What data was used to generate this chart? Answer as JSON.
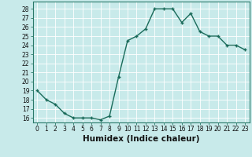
{
  "x": [
    0,
    1,
    2,
    3,
    4,
    5,
    6,
    7,
    8,
    9,
    10,
    11,
    12,
    13,
    14,
    15,
    16,
    17,
    18,
    19,
    20,
    21,
    22,
    23
  ],
  "y": [
    19.0,
    18.0,
    17.5,
    16.5,
    16.0,
    16.0,
    16.0,
    15.8,
    16.2,
    20.5,
    24.5,
    25.0,
    25.8,
    28.0,
    28.0,
    28.0,
    26.5,
    27.5,
    25.5,
    25.0,
    25.0,
    24.0,
    24.0,
    23.5
  ],
  "xlabel": "Humidex (Indice chaleur)",
  "line_color": "#1a6b5a",
  "marker_color": "#1a6b5a",
  "background_color": "#c8eaea",
  "grid_color": "#a0d0d0",
  "ylim": [
    15.5,
    28.8
  ],
  "xlim": [
    -0.5,
    23.5
  ],
  "yticks": [
    16,
    17,
    18,
    19,
    20,
    21,
    22,
    23,
    24,
    25,
    26,
    27,
    28
  ],
  "xticks": [
    0,
    1,
    2,
    3,
    4,
    5,
    6,
    7,
    8,
    9,
    10,
    11,
    12,
    13,
    14,
    15,
    16,
    17,
    18,
    19,
    20,
    21,
    22,
    23
  ],
  "xtick_labels": [
    "0",
    "1",
    "2",
    "3",
    "4",
    "5",
    "6",
    "7",
    "8",
    "9",
    "10",
    "11",
    "12",
    "13",
    "14",
    "15",
    "16",
    "17",
    "18",
    "19",
    "20",
    "21",
    "22",
    "23"
  ],
  "tick_fontsize": 5.5,
  "xlabel_fontsize": 7.5,
  "linewidth": 1.0,
  "markersize": 3.5
}
